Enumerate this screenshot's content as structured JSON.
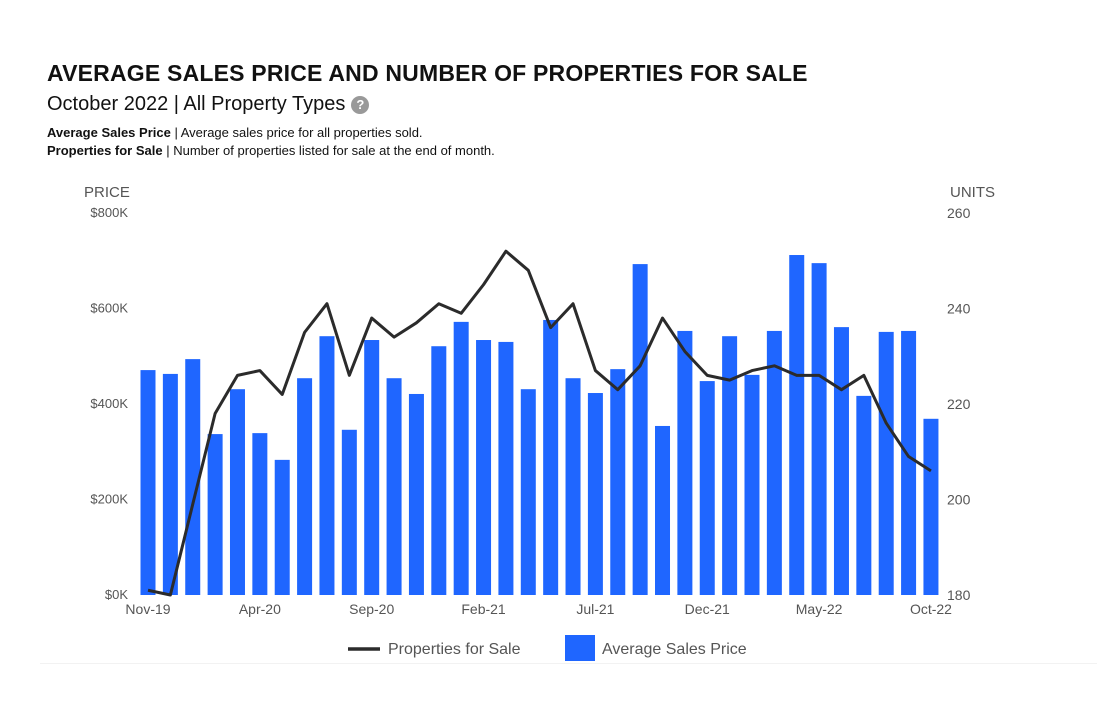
{
  "header": {
    "title": "AVERAGE SALES PRICE AND NUMBER OF PROPERTIES FOR SALE",
    "subtitle": "October 2022 | All Property Types",
    "help_icon": "question-circle-icon",
    "desc1_label": "Average Sales Price",
    "desc1_text": " | Average sales price for all properties sold.",
    "desc2_label": "Properties for Sale",
    "desc2_text": " | Number of properties listed for sale at the end of month."
  },
  "chart_data": {
    "type": "bar",
    "title": "AVERAGE SALES PRICE AND NUMBER OF PROPERTIES FOR SALE",
    "ylabel": "PRICE",
    "y2label": "UNITS",
    "ylim": [
      0,
      800
    ],
    "y2lim": [
      180,
      260
    ],
    "yticks": [
      "$0K",
      "$200K",
      "$400K",
      "$600K",
      "$800K"
    ],
    "y2ticks": [
      "180",
      "200",
      "220",
      "240",
      "260"
    ],
    "categories": [
      "Nov-19",
      "Dec-19",
      "Jan-20",
      "Feb-20",
      "Mar-20",
      "Apr-20",
      "May-20",
      "Jun-20",
      "Jul-20",
      "Aug-20",
      "Sep-20",
      "Oct-20",
      "Nov-20",
      "Dec-20",
      "Jan-21",
      "Feb-21",
      "Mar-21",
      "Apr-21",
      "May-21",
      "Jun-21",
      "Jul-21",
      "Aug-21",
      "Sep-21",
      "Oct-21",
      "Nov-21",
      "Dec-21",
      "Jan-22",
      "Feb-22",
      "Mar-22",
      "Apr-22",
      "May-22",
      "Jun-22",
      "Jul-22",
      "Aug-22",
      "Sep-22",
      "Oct-22"
    ],
    "xtick_labels": [
      "Nov-19",
      "Apr-20",
      "Sep-20",
      "Feb-21",
      "Jul-21",
      "Dec-21",
      "May-22",
      "Oct-22"
    ],
    "series": [
      {
        "name": "Average Sales Price",
        "type": "bar",
        "axis": "left",
        "unit": "$K",
        "color": "#1f66ff",
        "values": [
          471,
          463,
          494,
          337,
          431,
          339,
          283,
          454,
          542,
          346,
          534,
          454,
          421,
          521,
          572,
          534,
          530,
          431,
          576,
          454,
          423,
          473,
          693,
          354,
          553,
          448,
          542,
          461,
          553,
          712,
          695,
          561,
          417,
          551,
          553,
          369
        ]
      },
      {
        "name": "Properties for Sale",
        "type": "line",
        "axis": "right",
        "unit": "units",
        "color": "#2b2b2b",
        "values": [
          181,
          180,
          199,
          218,
          226,
          227,
          222,
          235,
          241,
          226,
          238,
          234,
          237,
          241,
          239,
          245,
          252,
          248,
          236,
          241,
          227,
          223,
          228,
          238,
          231,
          226,
          225,
          227,
          228,
          226,
          226,
          223,
          226,
          216,
          209,
          206
        ]
      }
    ],
    "legend": {
      "placement": "bottom",
      "entries": [
        "Properties for Sale",
        "Average Sales Price"
      ]
    }
  }
}
